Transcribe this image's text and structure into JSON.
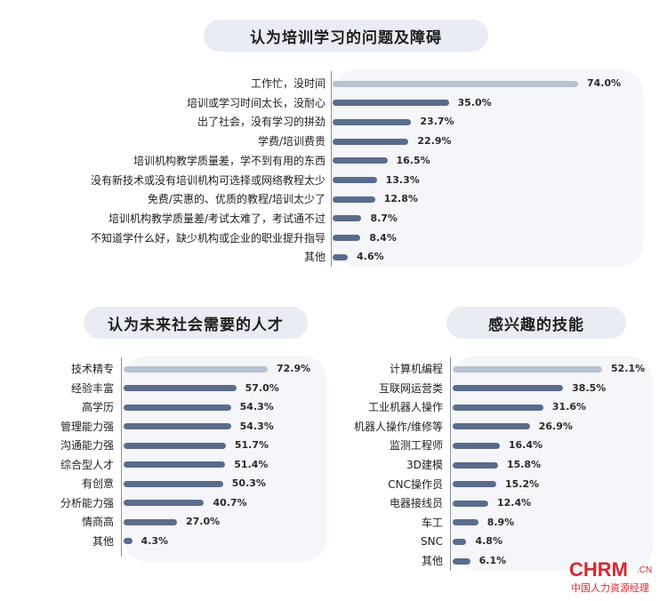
{
  "chart_data": [
    {
      "type": "bar",
      "orientation": "horizontal",
      "title": "认为培训学习的问题及障碍",
      "categories": [
        "工作忙，没时间",
        "培训或学习时间太长，没耐心",
        "出了社会，没有学习的拼劲",
        "学费/培训费贵",
        "培训机构教学质量差，学不到有用的东西",
        "没有新技术或没有培训机构可选择或网络教程太少",
        "免费/实惠的、优质的教程/培训太少了",
        "培训机构教学质量差/考试太难了，考试通不过",
        "不知道学什么好，缺少机构或企业的职业提升指导",
        "其他"
      ],
      "values": [
        74.0,
        35.0,
        23.7,
        22.9,
        16.5,
        13.3,
        12.8,
        8.7,
        8.4,
        4.6
      ],
      "value_labels": [
        "74.0%",
        "35.0%",
        "23.7%",
        "22.9%",
        "16.5%",
        "13.3%",
        "12.8%",
        "8.7%",
        "8.4%",
        "4.6%"
      ],
      "unit": "%",
      "highlight_index": 0
    },
    {
      "type": "bar",
      "orientation": "horizontal",
      "title": "认为未来社会需要的人才",
      "categories": [
        "技术精专",
        "经验丰富",
        "高学历",
        "管理能力强",
        "沟通能力强",
        "综合型人才",
        "有创意",
        "分析能力强",
        "情商高",
        "其他"
      ],
      "values": [
        72.9,
        57.0,
        54.3,
        54.3,
        51.7,
        51.4,
        50.3,
        40.7,
        27.0,
        4.3
      ],
      "value_labels": [
        "72.9%",
        "57.0%",
        "54.3%",
        "54.3%",
        "51.7%",
        "51.4%",
        "50.3%",
        "40.7%",
        "27.0%",
        "4.3%"
      ],
      "unit": "%",
      "highlight_index": 0
    },
    {
      "type": "bar",
      "orientation": "horizontal",
      "title": "感兴趣的技能",
      "categories": [
        "计算机编程",
        "互联网运营类",
        "工业机器人操作",
        "机器人操作/维修等",
        "监测工程师",
        "3D建模",
        "CNC操作员",
        "电器接线员",
        "车工",
        "SNC",
        "其他"
      ],
      "values": [
        52.1,
        38.5,
        31.6,
        26.9,
        16.4,
        15.8,
        15.2,
        12.4,
        8.9,
        4.8,
        6.1
      ],
      "value_labels": [
        "52.1%",
        "38.5%",
        "31.6%",
        "26.9%",
        "16.4%",
        "15.8%",
        "15.2%",
        "12.4%",
        "8.9%",
        "4.8%",
        "6.1%"
      ],
      "unit": "%",
      "highlight_index": 0
    }
  ],
  "colors": {
    "highlight_bar": "#b9c2d2",
    "bar": "#5a6c8c",
    "panel_bg": "#f4f6f9",
    "title_bg": "#e9ecf2",
    "logo": "#d7282f"
  },
  "logo": {
    "main": "CHRM",
    "suffix": ".CN",
    "sub": "中国人力资源经理"
  }
}
